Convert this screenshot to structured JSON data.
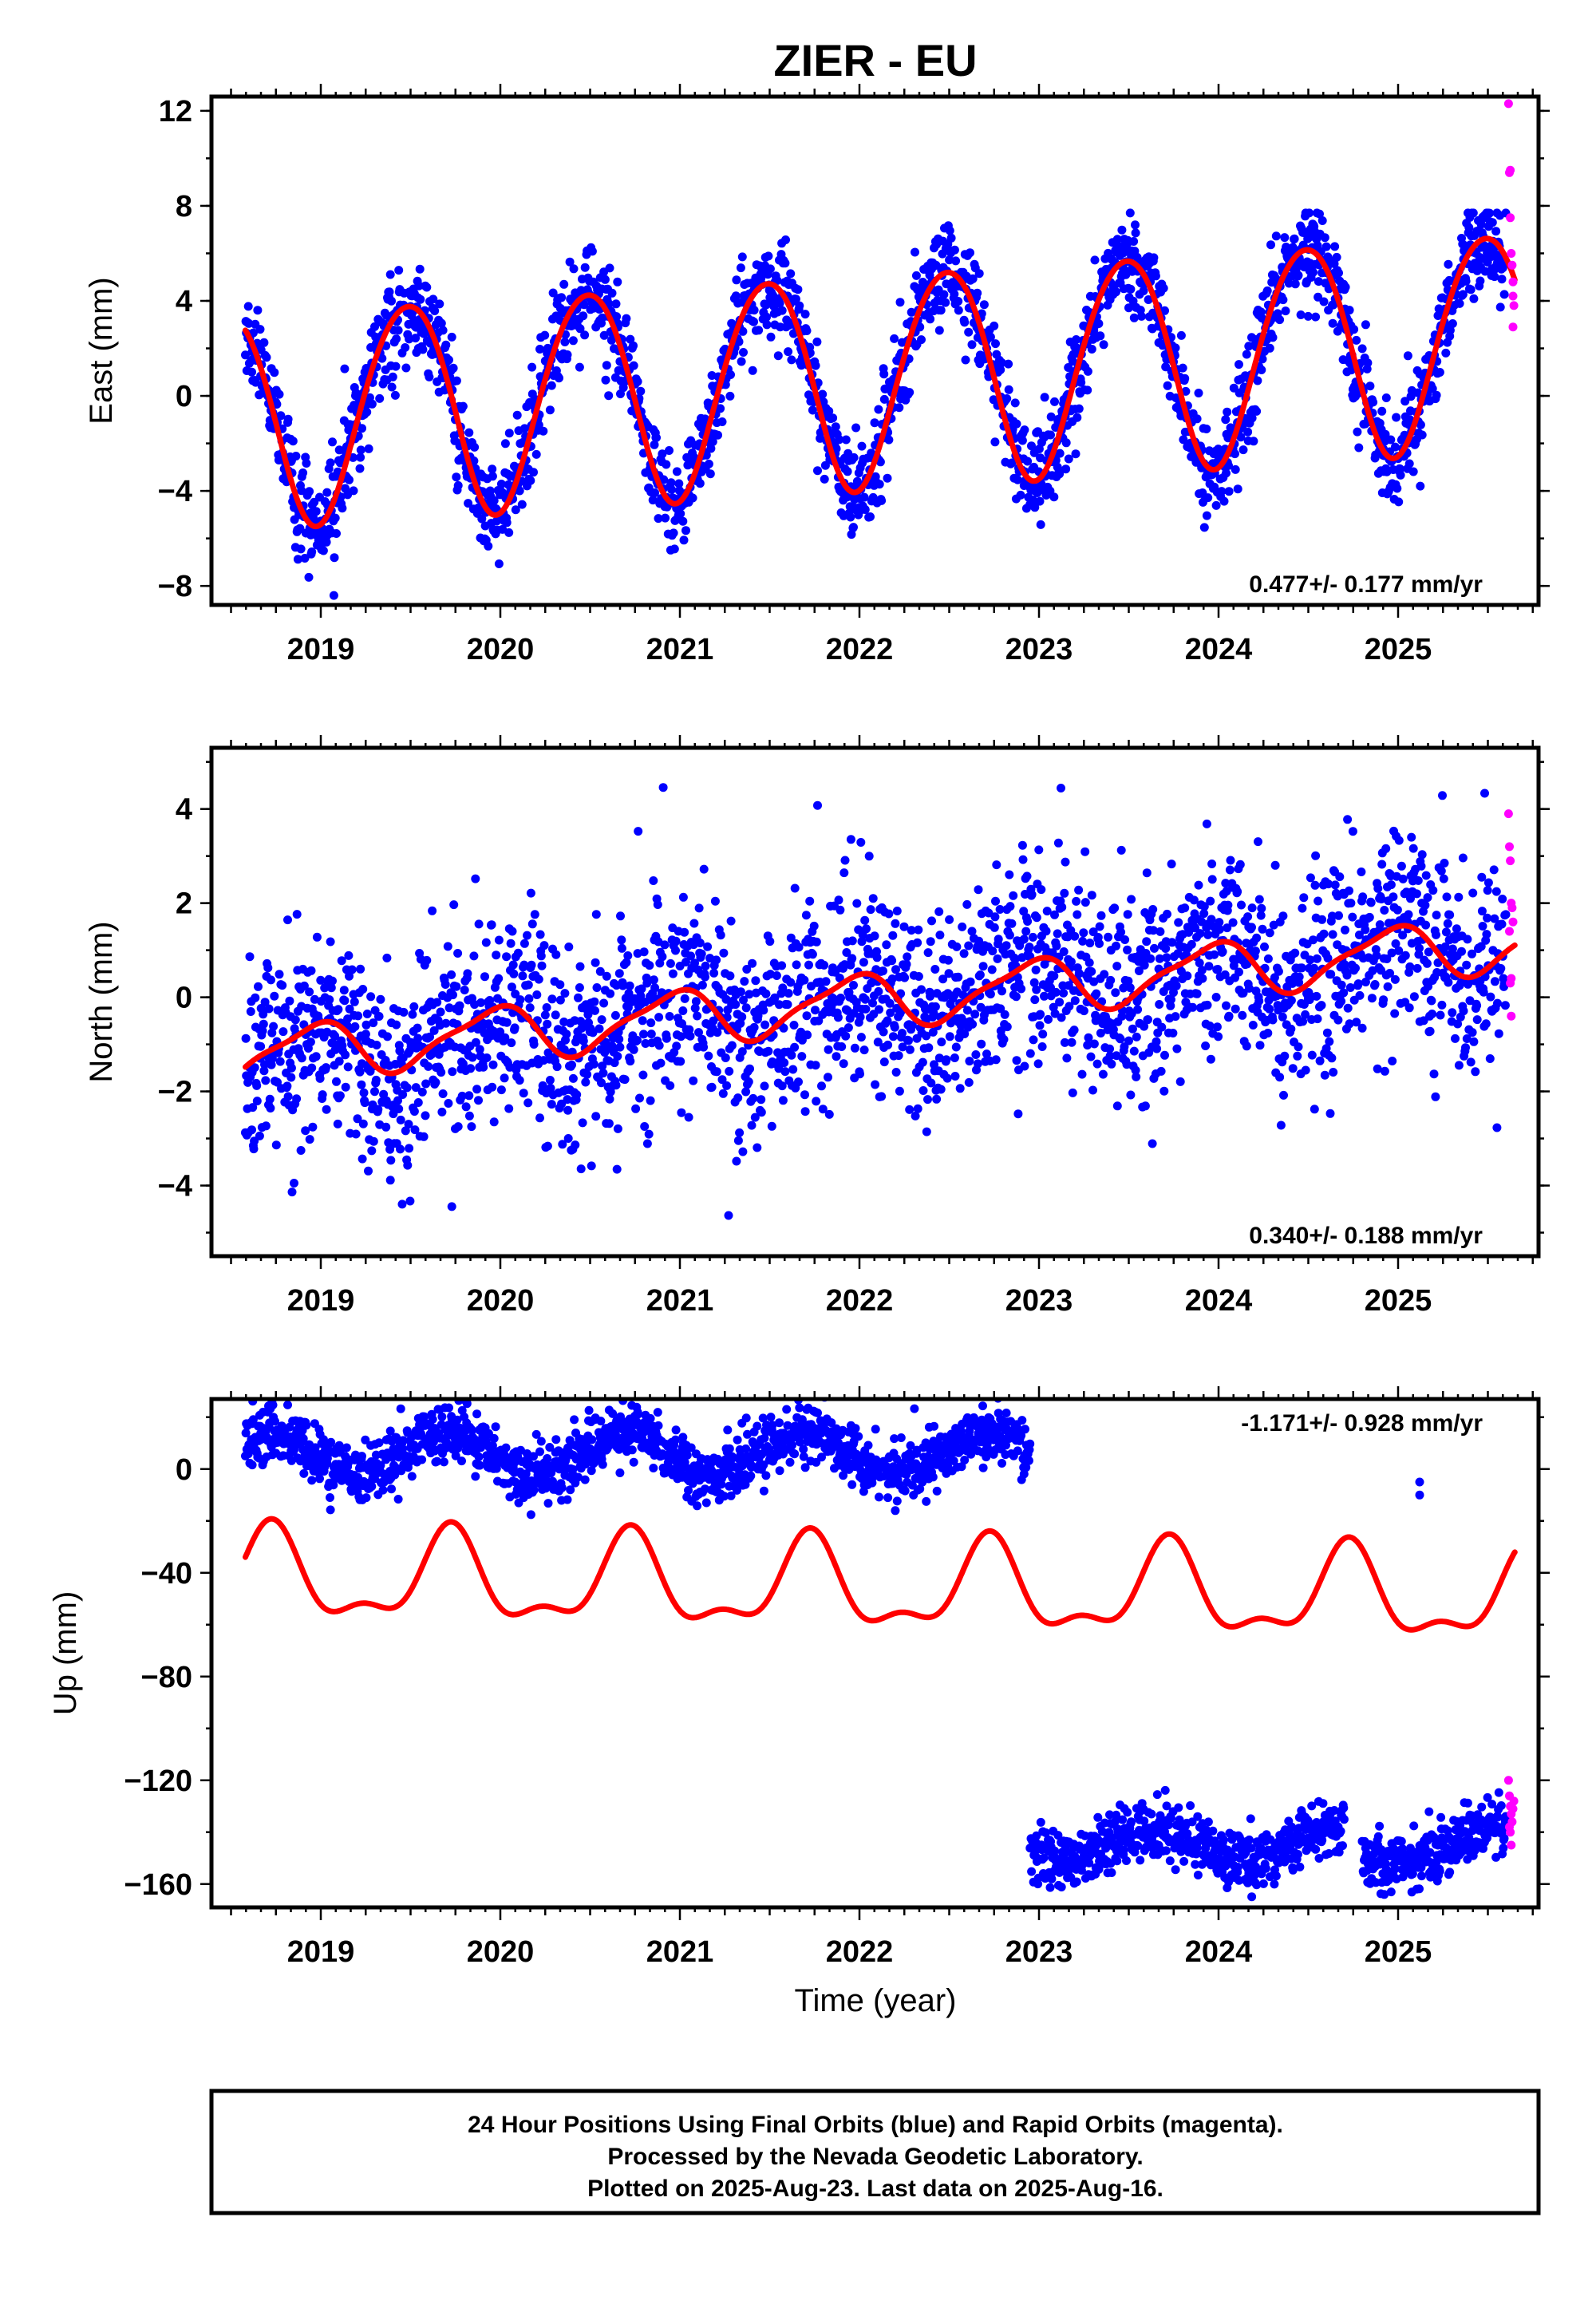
{
  "chart_data": {
    "type": "scatter",
    "title": "ZIER - EU",
    "xlabel": "Time (year)",
    "x_ticks": [
      "2019",
      "2020",
      "2021",
      "2022",
      "2023",
      "2024",
      "2025"
    ],
    "xlim": [
      2018.45,
      2025.72
    ],
    "colors": {
      "final": "#0000ff",
      "rapid": "#ff00ff",
      "fit": "#ff0000"
    },
    "panels": [
      {
        "name": "east",
        "ylabel": "East (mm)",
        "ylim": [
          -8.8,
          12.6
        ],
        "yticks": [
          "12",
          "8",
          "4",
          "0",
          "−4",
          "−8"
        ],
        "ytick_values": [
          12,
          8,
          4,
          0,
          -4,
          -8
        ],
        "rate": "0.477+/- 0.177 mm/yr",
        "rate_position": "bottom-right",
        "fit": {
          "start": 2018.58,
          "end": 2025.65,
          "offset": -0.9,
          "trend": 0.477,
          "annual_amp": 4.5,
          "annual_peak": 2019.48,
          "semi_amp": 0.3,
          "semi_peak": 2019.2
        },
        "final_series": {
          "start": 2018.58,
          "end": 2025.6,
          "noise": 1.0,
          "outlier_range": [
            -8.4,
            7.7
          ]
        },
        "rapid_points": [
          [
            2025.615,
            12.3
          ],
          [
            2025.62,
            9.4
          ],
          [
            2025.625,
            9.5
          ],
          [
            2025.625,
            7.5
          ],
          [
            2025.63,
            6.0
          ],
          [
            2025.635,
            5.5
          ],
          [
            2025.64,
            4.8
          ],
          [
            2025.645,
            3.8
          ],
          [
            2025.64,
            2.9
          ],
          [
            2025.64,
            4.2
          ]
        ]
      },
      {
        "name": "north",
        "ylabel": "North (mm)",
        "ylim": [
          -5.5,
          5.3
        ],
        "yticks": [
          "4",
          "2",
          "0",
          "−2",
          "−4"
        ],
        "ytick_values": [
          4,
          2,
          0,
          -2,
          -4
        ],
        "rate": "0.340+/- 0.188 mm/yr",
        "rate_position": "bottom-right",
        "fit": {
          "start": 2018.58,
          "end": 2025.65,
          "offset": -1.25,
          "trend": 0.34,
          "annual_amp": 0.55,
          "annual_peak": 2018.95,
          "semi_amp": 0.15,
          "semi_peak": 2019.1
        },
        "final_series": {
          "start": 2018.58,
          "end": 2025.6,
          "noise": 1.05,
          "outlier_range": [
            -5.4,
            5.1
          ]
        },
        "rapid_points": [
          [
            2025.615,
            3.9
          ],
          [
            2025.62,
            3.2
          ],
          [
            2025.625,
            2.9
          ],
          [
            2025.63,
            2.0
          ],
          [
            2025.635,
            1.9
          ],
          [
            2025.64,
            1.6
          ],
          [
            2025.62,
            1.4
          ],
          [
            2025.63,
            0.4
          ],
          [
            2025.625,
            0.3
          ],
          [
            2025.63,
            -0.4
          ]
        ]
      },
      {
        "name": "up",
        "ylabel": "Up (mm)",
        "ylim": [
          -169,
          27
        ],
        "yticks": [
          "0",
          "−40",
          "−80",
          "−120",
          "−160"
        ],
        "ytick_values": [
          0,
          -40,
          -80,
          -120,
          -160
        ],
        "rate": "-1.171+/- 0.928 mm/yr",
        "rate_position": "top-right",
        "fit": {
          "start": 2018.58,
          "end": 2025.65,
          "offset": -42,
          "trend": -1.171,
          "annual_amp": 16,
          "annual_peak": 2019.72,
          "semi_amp": 7,
          "semi_peak": 2019.23
        },
        "final_segments": [
          {
            "start": 2018.58,
            "end": 2022.95,
            "level": 6,
            "amp": 8,
            "peak": 2019.7,
            "noise": 5.5
          },
          {
            "start": 2022.95,
            "end": 2024.7,
            "level": -145,
            "amp": 6,
            "peak": 2023.65,
            "noise": 5.5
          },
          {
            "start": 2024.8,
            "end": 2025.6,
            "level": -146,
            "amp": 6,
            "peak": 2025.5,
            "noise": 5.5
          }
        ],
        "final_points": [
          [
            2025.12,
            -5
          ],
          [
            2025.12,
            -10
          ]
        ],
        "rapid_points": [
          [
            2025.615,
            -120
          ],
          [
            2025.62,
            -126
          ],
          [
            2025.625,
            -130
          ],
          [
            2025.63,
            -133
          ],
          [
            2025.635,
            -136
          ],
          [
            2025.62,
            -138
          ],
          [
            2025.625,
            -140
          ],
          [
            2025.63,
            -145
          ],
          [
            2025.64,
            -131
          ],
          [
            2025.645,
            -128
          ]
        ]
      }
    ]
  },
  "footer": {
    "line1": "24 Hour Positions Using Final Orbits (blue) and Rapid Orbits (magenta).",
    "line2": "Processed by the Nevada Geodetic Laboratory.",
    "line3": "Plotted on 2025-Aug-23. Last data on 2025-Aug-16."
  }
}
